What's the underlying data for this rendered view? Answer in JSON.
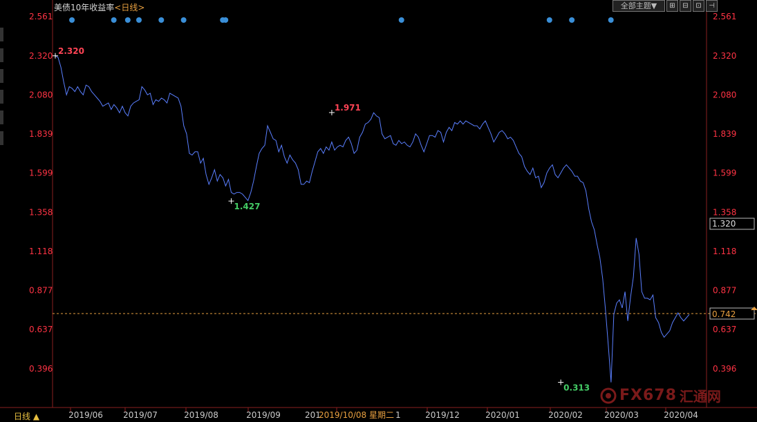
{
  "header": {
    "title": "美债10年收益率",
    "period": "<日线>",
    "theme_label": "全部主题▼",
    "buttons": [
      "⊞",
      "⊟",
      "⊡",
      "⊣"
    ]
  },
  "footer": {
    "period_label": "日线 ▲"
  },
  "watermark": {
    "fx": "FX678",
    "cn": "汇通网"
  },
  "chart_data": {
    "type": "line",
    "title": "美债10年收益率",
    "ylim": [
      0.276,
      2.561
    ],
    "yticks": [
      "2.561",
      "2.320",
      "2.080",
      "1.839",
      "1.599",
      "1.358",
      "1.118",
      "0.877",
      "0.637",
      "0.396"
    ],
    "xticks": [
      "2019/06",
      "2019/07",
      "2019/08",
      "2019/09",
      "2019/10/08 星期二 1",
      "2019/12",
      "2020/01",
      "2020/02",
      "2020/03",
      "2020/04"
    ],
    "crosshair_date": "2019/10/08 星期二",
    "current_value": "0.742",
    "crosshair_value": "1.320",
    "annotations": [
      {
        "label": "2.320",
        "value": 2.32,
        "index": 0,
        "color": "#ff4455"
      },
      {
        "label": "1.971",
        "value": 1.971,
        "index": 99,
        "color": "#ff4455"
      },
      {
        "label": "1.427",
        "value": 1.427,
        "index": 63,
        "color": "#44cc66"
      },
      {
        "label": "0.313",
        "value": 0.313,
        "index": 181,
        "color": "#44cc66"
      }
    ],
    "event_markers": [
      1,
      16,
      21,
      25,
      33,
      41,
      55,
      56,
      119,
      172,
      180,
      194
    ],
    "series": [
      {
        "color": "#5a7fff",
        "values": [
          2.32,
          2.31,
          2.25,
          2.16,
          2.08,
          2.13,
          2.12,
          2.1,
          2.13,
          2.1,
          2.08,
          2.14,
          2.13,
          2.1,
          2.08,
          2.06,
          2.04,
          2.01,
          2.02,
          2.03,
          1.99,
          2.02,
          2.0,
          1.97,
          2.01,
          1.97,
          1.95,
          2.01,
          2.03,
          2.04,
          2.05,
          2.13,
          2.11,
          2.08,
          2.09,
          2.02,
          2.05,
          2.04,
          2.06,
          2.05,
          2.03,
          2.09,
          2.08,
          2.07,
          2.06,
          2.01,
          1.89,
          1.84,
          1.72,
          1.71,
          1.73,
          1.73,
          1.66,
          1.69,
          1.59,
          1.53,
          1.57,
          1.62,
          1.55,
          1.59,
          1.57,
          1.52,
          1.56,
          1.48,
          1.47,
          1.48,
          1.48,
          1.47,
          1.45,
          1.43,
          1.48,
          1.55,
          1.64,
          1.72,
          1.75,
          1.77,
          1.89,
          1.85,
          1.81,
          1.8,
          1.73,
          1.77,
          1.7,
          1.66,
          1.71,
          1.68,
          1.66,
          1.62,
          1.53,
          1.53,
          1.55,
          1.54,
          1.61,
          1.67,
          1.73,
          1.75,
          1.72,
          1.76,
          1.74,
          1.79,
          1.74,
          1.76,
          1.77,
          1.76,
          1.8,
          1.82,
          1.78,
          1.72,
          1.74,
          1.82,
          1.85,
          1.9,
          1.91,
          1.93,
          1.97,
          1.95,
          1.94,
          1.84,
          1.81,
          1.82,
          1.83,
          1.78,
          1.77,
          1.8,
          1.78,
          1.79,
          1.77,
          1.76,
          1.79,
          1.84,
          1.82,
          1.77,
          1.73,
          1.78,
          1.83,
          1.83,
          1.82,
          1.86,
          1.85,
          1.79,
          1.85,
          1.88,
          1.86,
          1.91,
          1.9,
          1.92,
          1.9,
          1.92,
          1.91,
          1.9,
          1.89,
          1.89,
          1.87,
          1.9,
          1.92,
          1.88,
          1.84,
          1.79,
          1.82,
          1.85,
          1.86,
          1.84,
          1.81,
          1.82,
          1.8,
          1.76,
          1.72,
          1.7,
          1.64,
          1.61,
          1.59,
          1.63,
          1.57,
          1.58,
          1.51,
          1.54,
          1.6,
          1.63,
          1.65,
          1.59,
          1.57,
          1.6,
          1.63,
          1.65,
          1.63,
          1.61,
          1.58,
          1.58,
          1.55,
          1.54,
          1.49,
          1.38,
          1.3,
          1.25,
          1.16,
          1.08,
          0.95,
          0.76,
          0.54,
          0.313,
          0.73,
          0.8,
          0.82,
          0.77,
          0.87,
          0.69,
          0.84,
          0.96,
          1.2,
          1.1,
          0.87,
          0.83,
          0.83,
          0.82,
          0.85,
          0.71,
          0.68,
          0.62,
          0.59,
          0.61,
          0.63,
          0.68,
          0.71,
          0.74,
          0.71,
          0.69,
          0.71,
          0.73
        ]
      }
    ]
  }
}
